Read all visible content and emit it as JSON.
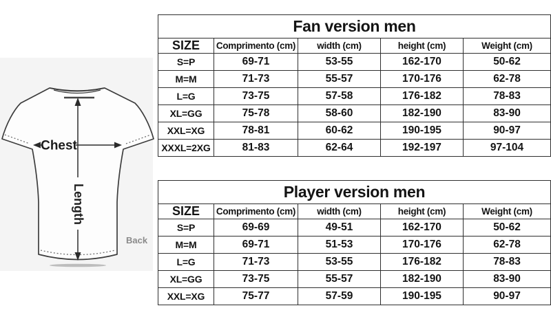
{
  "diagram": {
    "chest_label": "Chest",
    "length_label": "Length",
    "back_label": "Back"
  },
  "tables": [
    {
      "title": "Fan version men",
      "columns": [
        "SIZE",
        "Comprimento (cm)",
        "width (cm)",
        "height (cm)",
        "Weight (cm)"
      ],
      "rows": [
        [
          "S=P",
          "69-71",
          "53-55",
          "162-170",
          "50-62"
        ],
        [
          "M=M",
          "71-73",
          "55-57",
          "170-176",
          "62-78"
        ],
        [
          "L=G",
          "73-75",
          "57-58",
          "176-182",
          "78-83"
        ],
        [
          "XL=GG",
          "75-78",
          "58-60",
          "182-190",
          "83-90"
        ],
        [
          "XXL=XG",
          "78-81",
          "60-62",
          "190-195",
          "90-97"
        ],
        [
          "XXXL=2XG",
          "81-83",
          "62-64",
          "192-197",
          "97-104"
        ]
      ]
    },
    {
      "title": "Player version men",
      "columns": [
        "SIZE",
        "Comprimento (cm)",
        "width (cm)",
        "height (cm)",
        "Weight (cm)"
      ],
      "rows": [
        [
          "S=P",
          "69-69",
          "49-51",
          "162-170",
          "50-62"
        ],
        [
          "M=M",
          "69-71",
          "51-53",
          "170-176",
          "62-78"
        ],
        [
          "L=G",
          "71-73",
          "53-55",
          "176-182",
          "78-83"
        ],
        [
          "XL=GG",
          "73-75",
          "55-57",
          "182-190",
          "83-90"
        ],
        [
          "XXL=XG",
          "75-77",
          "57-59",
          "190-195",
          "90-97"
        ]
      ]
    }
  ],
  "colors": {
    "table_border": "#2e2e2e",
    "table_text": "#141414",
    "diagram_bg": "#f4f4f4",
    "shirt_fill": "#fdfdfd",
    "shirt_outline": "#3c3c3c",
    "arrow": "#2b2b2b",
    "back_label": "#8a8a8a"
  }
}
